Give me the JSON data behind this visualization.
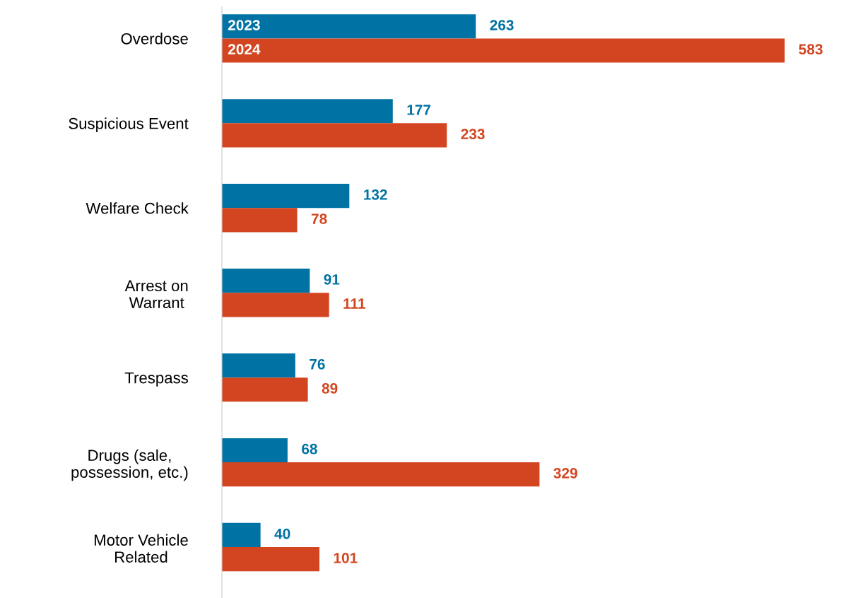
{
  "chart_data": {
    "type": "bar",
    "orientation": "horizontal",
    "data_labels": true,
    "legend": false,
    "grid": false,
    "categories": [
      "Overdose",
      "Suspicious Event",
      "Welfare Check",
      "Arrest on\nWarrant",
      "Trespass",
      "Drugs (sale,\npossession, etc.)",
      "Motor Vehicle\nRelated"
    ],
    "series": [
      {
        "name": "2023",
        "color": "#0072a3",
        "values": [
          263,
          177,
          132,
          91,
          76,
          68,
          40
        ]
      },
      {
        "name": "2024",
        "color": "#d34520",
        "values": [
          583,
          233,
          78,
          111,
          89,
          329,
          101
        ]
      }
    ]
  }
}
